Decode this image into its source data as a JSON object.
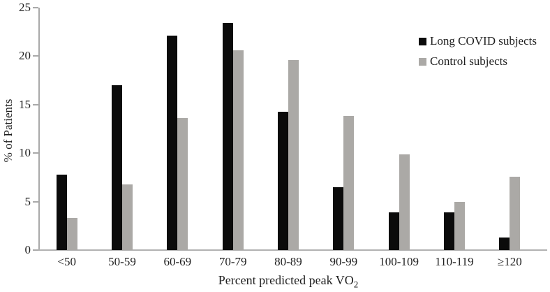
{
  "chart_data": {
    "type": "bar",
    "title": "",
    "categories": [
      "<50",
      "50-59",
      "60-69",
      "70-79",
      "80-89",
      "90-99",
      "100-109",
      "110-119",
      "≥120"
    ],
    "series": [
      {
        "name": "Long COVID subjects",
        "color": "#0b0b0b",
        "values": [
          7.8,
          17.0,
          22.1,
          23.4,
          14.3,
          6.5,
          3.9,
          3.9,
          1.3
        ]
      },
      {
        "name": "Control subjects",
        "color": "#aba9a6",
        "values": [
          3.3,
          6.8,
          13.6,
          20.6,
          19.6,
          13.8,
          9.9,
          5.0,
          7.6
        ]
      }
    ],
    "xlabel": "Percent predicted peak VO",
    "xlabel_subscript": "2",
    "ylabel": "% of Patients",
    "ylim": [
      0,
      25
    ],
    "yticks": [
      0,
      5,
      10,
      15,
      20,
      25
    ],
    "grid": false,
    "legend_position": "upper-right",
    "axis_color": "#a9a9a9",
    "text_color": "#1f1f1f",
    "background_color": "#ffffff"
  }
}
